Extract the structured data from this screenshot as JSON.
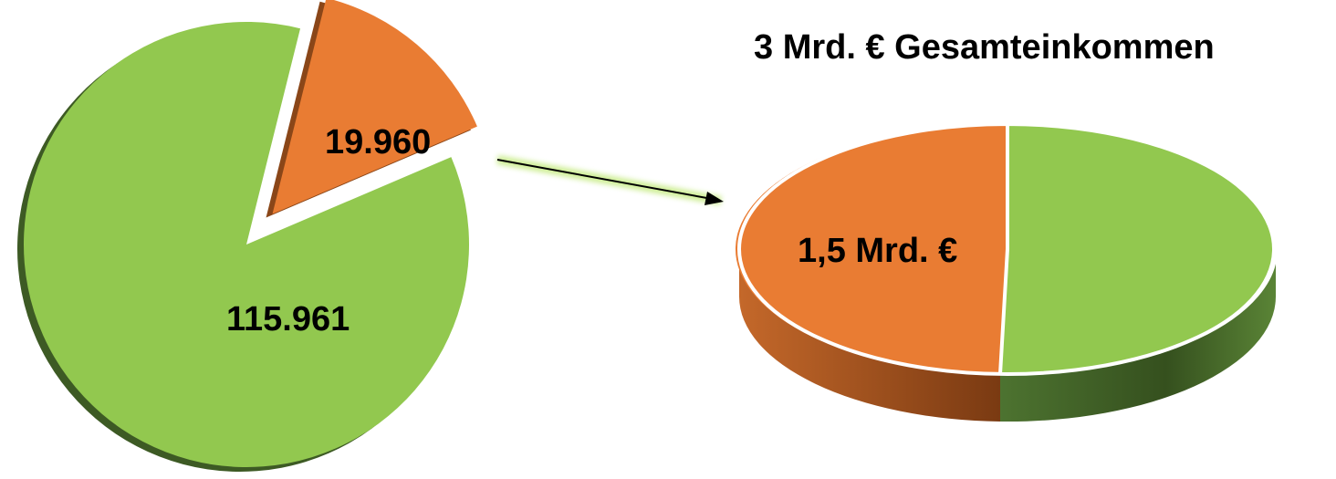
{
  "chart_data": [
    {
      "type": "pie",
      "slices": [
        {
          "label": "115.961",
          "value": 115961,
          "color": "#92c84f",
          "exploded": false
        },
        {
          "label": "19.960",
          "value": 19960,
          "color": "#e97c33",
          "exploded": true
        }
      ],
      "title": ""
    },
    {
      "type": "pie",
      "title": "3 Mrd. € Gesamteinkommen",
      "slices": [
        {
          "label": "1,5 Mrd. €",
          "value": 1.5,
          "color": "#e97c33"
        },
        {
          "label": "",
          "value": 1.5,
          "color": "#92c84f"
        }
      ]
    }
  ],
  "colors": {
    "green": "#92c84f",
    "green_dark": "#3d5a24",
    "orange": "#e97c33",
    "orange_dark": "#8a4618"
  }
}
